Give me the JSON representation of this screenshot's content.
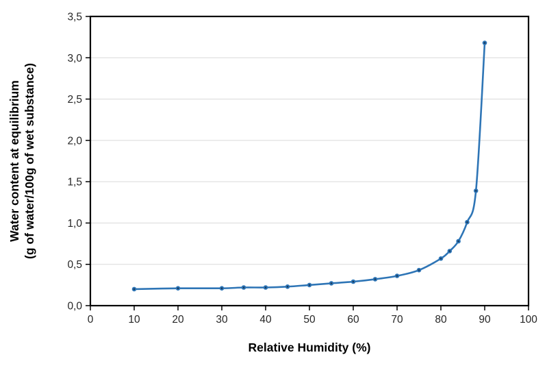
{
  "chart_data": {
    "type": "line",
    "title": "",
    "x": [
      10,
      20,
      30,
      35,
      40,
      45,
      50,
      55,
      60,
      65,
      70,
      75,
      80,
      82,
      84,
      86,
      88,
      90
    ],
    "series": [
      {
        "name": "Water content at equilibrium",
        "values": [
          0.2,
          0.21,
          0.21,
          0.22,
          0.22,
          0.23,
          0.25,
          0.27,
          0.29,
          0.32,
          0.36,
          0.43,
          0.57,
          0.66,
          0.78,
          1.01,
          1.39,
          3.18
        ]
      }
    ],
    "xlabel": "Relative Humidity (%)",
    "ylabel_lines": [
      "Water content at equilibrium",
      "(g of water/100g of wet substance)"
    ],
    "xlim": [
      0,
      100
    ],
    "ylim": [
      0,
      3.5
    ],
    "x_tick_values": [
      0,
      10,
      20,
      30,
      40,
      50,
      60,
      70,
      80,
      90,
      100
    ],
    "x_tick_labels": [
      "0",
      "10",
      "20",
      "30",
      "40",
      "50",
      "60",
      "70",
      "80",
      "90",
      "100"
    ],
    "y_tick_values": [
      0,
      0.5,
      1.0,
      1.5,
      2.0,
      2.5,
      3.0,
      3.5
    ],
    "y_tick_labels": [
      "0,0",
      "0,5",
      "1,0",
      "1,5",
      "2,0",
      "2,5",
      "3,0",
      "3,5"
    ],
    "decimal_separator": ",",
    "grid": "horizontal",
    "legend": "none",
    "smooth": true,
    "marker": "circle",
    "line_color": "#2E75B6",
    "marker_fill_color": "#2E75B6",
    "marker_center_color": "#17395C",
    "gridline_color": "#D9D9D9",
    "axis_color": "#000000",
    "tick_label_color": "#262626"
  }
}
